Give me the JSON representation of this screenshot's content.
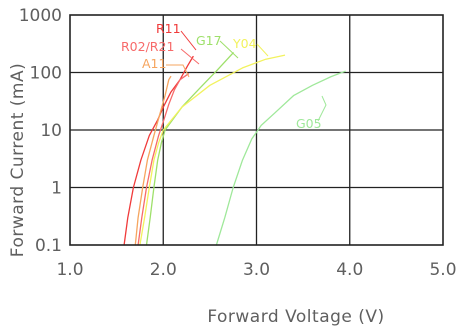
{
  "chart_data": {
    "type": "line",
    "xlabel": "Forward Voltage (V)",
    "ylabel": "Forward Current (mA)",
    "xlim": [
      1.0,
      5.0
    ],
    "ylim": [
      0.1,
      1000
    ],
    "y_scale": "log",
    "grid": true,
    "x_ticks": [
      1.0,
      2.0,
      3.0,
      4.0,
      5.0
    ],
    "x_tick_labels": [
      "1.0",
      "2.0",
      "3.0",
      "4.0",
      "5.0"
    ],
    "y_ticks": [
      0.1,
      1,
      10,
      100,
      1000
    ],
    "y_tick_labels": [
      "0.1",
      "1",
      "10",
      "100",
      "1000"
    ],
    "series": [
      {
        "name": "R11",
        "color": "#f03a3a",
        "points": [
          [
            1.58,
            0.1
          ],
          [
            1.62,
            0.3
          ],
          [
            1.68,
            1
          ],
          [
            1.76,
            3
          ],
          [
            1.85,
            8
          ],
          [
            1.94,
            15
          ],
          [
            2.0,
            25
          ],
          [
            2.08,
            45
          ],
          [
            2.18,
            75
          ],
          [
            2.26,
            130
          ],
          [
            2.32,
            190
          ]
        ]
      },
      {
        "name": "R02/R21",
        "color": "#f76a6a",
        "points": [
          [
            1.73,
            0.1
          ],
          [
            1.77,
            0.3
          ],
          [
            1.82,
            1
          ],
          [
            1.88,
            3
          ],
          [
            1.95,
            8
          ],
          [
            2.0,
            14
          ],
          [
            2.06,
            28
          ],
          [
            2.12,
            50
          ],
          [
            2.18,
            75
          ],
          [
            2.27,
            95
          ]
        ]
      },
      {
        "name": "A11",
        "color": "#f6a55f",
        "points": [
          [
            1.7,
            0.1
          ],
          [
            1.73,
            0.3
          ],
          [
            1.78,
            1
          ],
          [
            1.83,
            3
          ],
          [
            1.9,
            8
          ],
          [
            1.96,
            18
          ],
          [
            2.02,
            40
          ],
          [
            2.06,
            75
          ],
          [
            2.08,
            85
          ]
        ]
      },
      {
        "name": "G17",
        "color": "#9ee06a",
        "points": [
          [
            1.82,
            0.1
          ],
          [
            1.86,
            0.3
          ],
          [
            1.9,
            1
          ],
          [
            1.94,
            3
          ],
          [
            1.98,
            6
          ],
          [
            2.02,
            10
          ],
          [
            2.2,
            25
          ],
          [
            2.4,
            55
          ],
          [
            2.58,
            110
          ],
          [
            2.75,
            220
          ]
        ]
      },
      {
        "name": "Y04",
        "color": "#f2f25e",
        "points": [
          [
            1.75,
            0.1
          ],
          [
            1.8,
            0.3
          ],
          [
            1.85,
            1
          ],
          [
            1.9,
            3
          ],
          [
            1.95,
            6
          ],
          [
            2.0,
            10
          ],
          [
            2.2,
            25
          ],
          [
            2.5,
            60
          ],
          [
            2.85,
            120
          ],
          [
            3.1,
            170
          ],
          [
            3.3,
            200
          ]
        ]
      },
      {
        "name": "G05",
        "color": "#9fe89a",
        "points": [
          [
            2.57,
            0.1
          ],
          [
            2.66,
            0.3
          ],
          [
            2.75,
            1
          ],
          [
            2.85,
            3
          ],
          [
            2.95,
            7
          ],
          [
            3.05,
            12
          ],
          [
            3.2,
            20
          ],
          [
            3.4,
            40
          ],
          [
            3.6,
            60
          ],
          [
            3.8,
            85
          ],
          [
            3.95,
            105
          ]
        ]
      }
    ]
  }
}
